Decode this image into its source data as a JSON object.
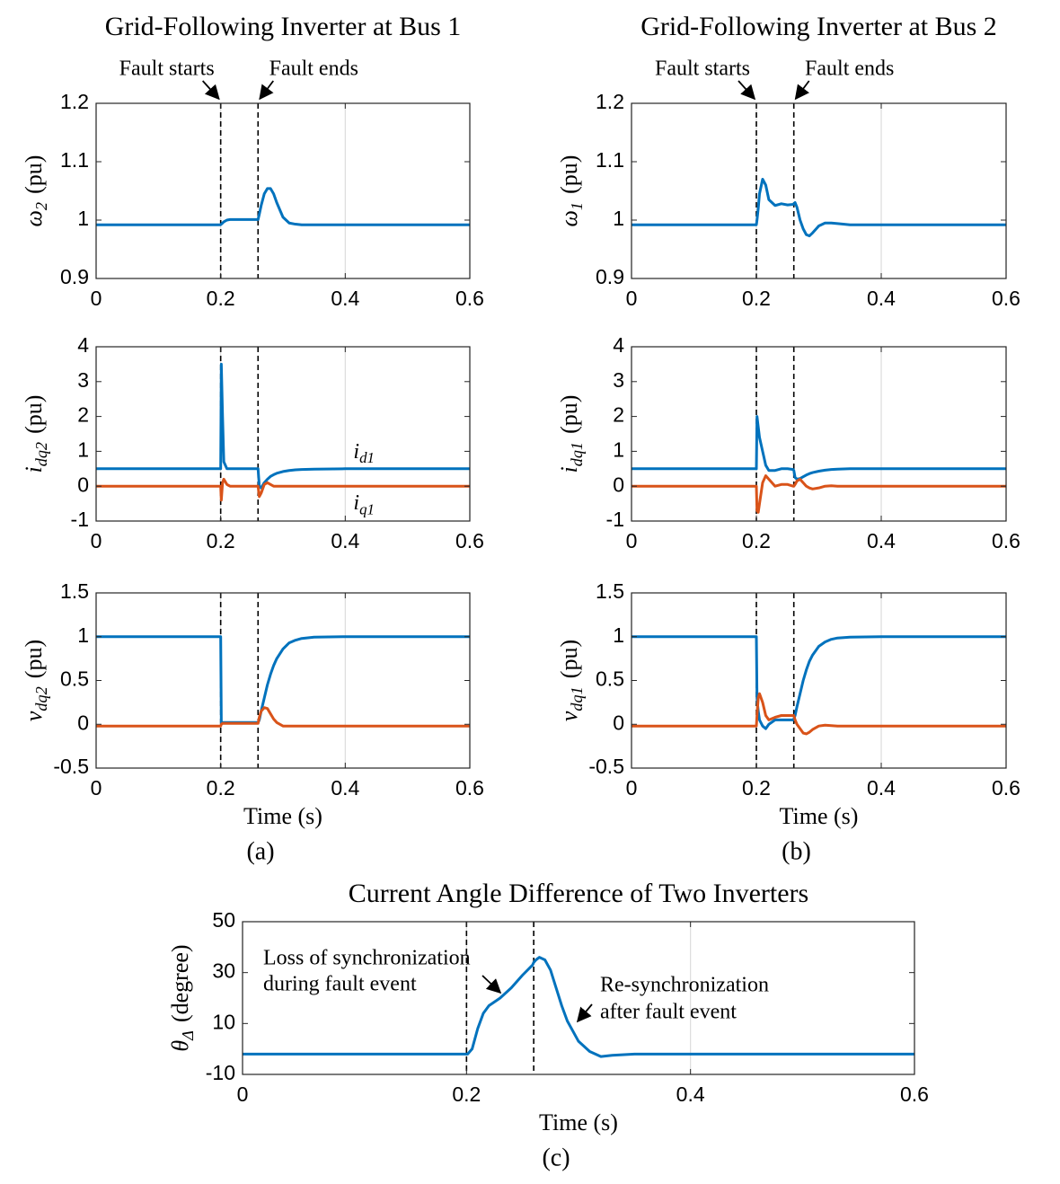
{
  "chart_data": [
    {
      "type": "line",
      "title": "Grid-Following Inverter at Bus 1",
      "annotations": [
        "Fault starts",
        "Fault ends"
      ],
      "ylabel": {
        "symbol": "ω",
        "subscript": "2",
        "unit": "(pu)"
      },
      "x": [
        0,
        0.1,
        0.199,
        0.2,
        0.201,
        0.203,
        0.205,
        0.21,
        0.215,
        0.22,
        0.23,
        0.24,
        0.25,
        0.259,
        0.26,
        0.262,
        0.265,
        0.27,
        0.275,
        0.28,
        0.285,
        0.29,
        0.3,
        0.31,
        0.32,
        0.33,
        0.35,
        0.4,
        0.5,
        0.6
      ],
      "series": [
        {
          "color": "#0072BD",
          "values": [
            0.992,
            0.992,
            0.992,
            0.992,
            0.993,
            0.995,
            0.997,
            1.0,
            1.001,
            1.001,
            1.001,
            1.001,
            1.001,
            1.001,
            1.001,
            1.01,
            1.025,
            1.045,
            1.054,
            1.054,
            1.045,
            1.03,
            1.005,
            0.995,
            0.993,
            0.992,
            0.992,
            0.992,
            0.992,
            0.992
          ]
        }
      ],
      "vlines": [
        0.2,
        0.26
      ],
      "xlim": [
        0,
        0.6
      ],
      "xticks": [
        0,
        0.2,
        0.4,
        0.6
      ],
      "ylim": [
        0.9,
        1.2
      ],
      "yticks": [
        0.9,
        1,
        1.1,
        1.2
      ],
      "grid": "x"
    },
    {
      "type": "line",
      "ylabel": {
        "symbol": "i",
        "subscript": "dq2",
        "unit": "(pu)"
      },
      "x": [
        0,
        0.1,
        0.199,
        0.2,
        0.201,
        0.203,
        0.205,
        0.21,
        0.215,
        0.22,
        0.23,
        0.24,
        0.25,
        0.259,
        0.26,
        0.262,
        0.265,
        0.27,
        0.275,
        0.28,
        0.285,
        0.29,
        0.3,
        0.31,
        0.32,
        0.33,
        0.35,
        0.4,
        0.5,
        0.6
      ],
      "series": [
        {
          "label": {
            "symbol": "i",
            "subscript": "d1"
          },
          "color": "#0072BD",
          "values": [
            0.5,
            0.5,
            0.5,
            0.5,
            3.5,
            2.0,
            0.7,
            0.5,
            0.5,
            0.5,
            0.5,
            0.5,
            0.5,
            0.5,
            0.5,
            0.0,
            -0.05,
            0.1,
            0.2,
            0.28,
            0.33,
            0.37,
            0.42,
            0.45,
            0.47,
            0.48,
            0.49,
            0.5,
            0.5,
            0.5
          ]
        },
        {
          "label": {
            "symbol": "i",
            "subscript": "q1"
          },
          "color": "#D95319",
          "values": [
            0,
            0,
            0,
            0,
            -0.4,
            0.1,
            0.2,
            0.05,
            0,
            0,
            0,
            0,
            0,
            0,
            0,
            -0.3,
            -0.2,
            0.05,
            0.1,
            0.05,
            0,
            0,
            0,
            0,
            0,
            0,
            0,
            0,
            0,
            0
          ]
        }
      ],
      "vlines": [
        0.2,
        0.26
      ],
      "xlim": [
        0,
        0.6
      ],
      "xticks": [
        0,
        0.2,
        0.4,
        0.6
      ],
      "ylim": [
        -1,
        4
      ],
      "yticks": [
        -1,
        0,
        1,
        2,
        3,
        4
      ],
      "grid": "x"
    },
    {
      "type": "line",
      "ylabel": {
        "symbol": "v",
        "subscript": "dq2",
        "unit": "(pu)"
      },
      "xlabel": "Time (s)",
      "caption": "(a)",
      "x": [
        0,
        0.1,
        0.199,
        0.2,
        0.201,
        0.203,
        0.205,
        0.21,
        0.215,
        0.22,
        0.23,
        0.24,
        0.25,
        0.259,
        0.26,
        0.262,
        0.265,
        0.27,
        0.275,
        0.28,
        0.285,
        0.29,
        0.3,
        0.31,
        0.32,
        0.33,
        0.35,
        0.4,
        0.5,
        0.6
      ],
      "series": [
        {
          "color": "#0072BD",
          "values": [
            1,
            1,
            1,
            1,
            0.02,
            0.02,
            0.02,
            0.02,
            0.02,
            0.02,
            0.02,
            0.02,
            0.02,
            0.02,
            0.02,
            0.05,
            0.15,
            0.3,
            0.45,
            0.57,
            0.67,
            0.75,
            0.86,
            0.93,
            0.96,
            0.98,
            0.995,
            1,
            1,
            1
          ]
        },
        {
          "color": "#D95319",
          "values": [
            -0.02,
            -0.02,
            -0.02,
            -0.02,
            0,
            0.01,
            0.01,
            0.01,
            0.01,
            0.01,
            0.01,
            0.01,
            0.01,
            0.01,
            0.01,
            0.08,
            0.15,
            0.19,
            0.18,
            0.12,
            0.06,
            0.02,
            -0.02,
            -0.02,
            -0.02,
            -0.02,
            -0.02,
            -0.02,
            -0.02,
            -0.02
          ]
        }
      ],
      "vlines": [
        0.2,
        0.26
      ],
      "xlim": [
        0,
        0.6
      ],
      "xticks": [
        0,
        0.2,
        0.4,
        0.6
      ],
      "ylim": [
        -0.5,
        1.5
      ],
      "yticks": [
        -0.5,
        0,
        0.5,
        1,
        1.5
      ],
      "grid": "x"
    },
    {
      "type": "line",
      "title": "Grid-Following Inverter at Bus 2",
      "annotations": [
        "Fault starts",
        "Fault ends"
      ],
      "ylabel": {
        "symbol": "ω",
        "subscript": "1",
        "unit": "(pu)"
      },
      "x": [
        0,
        0.1,
        0.199,
        0.2,
        0.201,
        0.203,
        0.205,
        0.21,
        0.215,
        0.22,
        0.23,
        0.24,
        0.25,
        0.259,
        0.26,
        0.262,
        0.265,
        0.27,
        0.275,
        0.28,
        0.285,
        0.29,
        0.3,
        0.31,
        0.32,
        0.33,
        0.35,
        0.4,
        0.5,
        0.6
      ],
      "series": [
        {
          "color": "#0072BD",
          "values": [
            0.992,
            0.992,
            0.992,
            0.992,
            1.0,
            1.02,
            1.045,
            1.07,
            1.06,
            1.035,
            1.025,
            1.028,
            1.026,
            1.027,
            1.028,
            1.03,
            1.022,
            1.0,
            0.985,
            0.975,
            0.973,
            0.978,
            0.99,
            0.995,
            0.995,
            0.994,
            0.992,
            0.992,
            0.992,
            0.992
          ]
        }
      ],
      "vlines": [
        0.2,
        0.26
      ],
      "xlim": [
        0,
        0.6
      ],
      "xticks": [
        0,
        0.2,
        0.4,
        0.6
      ],
      "ylim": [
        0.9,
        1.2
      ],
      "yticks": [
        0.9,
        1,
        1.1,
        1.2
      ],
      "grid": "x"
    },
    {
      "type": "line",
      "ylabel": {
        "symbol": "i",
        "subscript": "dq1",
        "unit": "(pu)"
      },
      "x": [
        0,
        0.1,
        0.199,
        0.2,
        0.201,
        0.203,
        0.205,
        0.21,
        0.215,
        0.22,
        0.23,
        0.24,
        0.25,
        0.259,
        0.26,
        0.262,
        0.265,
        0.27,
        0.275,
        0.28,
        0.285,
        0.29,
        0.3,
        0.31,
        0.32,
        0.33,
        0.35,
        0.4,
        0.5,
        0.6
      ],
      "series": [
        {
          "color": "#0072BD",
          "values": [
            0.5,
            0.5,
            0.5,
            0.5,
            2.0,
            1.7,
            1.4,
            1.0,
            0.6,
            0.45,
            0.45,
            0.5,
            0.5,
            0.48,
            0.45,
            0.25,
            0.2,
            0.22,
            0.27,
            0.32,
            0.36,
            0.39,
            0.43,
            0.46,
            0.48,
            0.49,
            0.5,
            0.5,
            0.5,
            0.5
          ]
        },
        {
          "color": "#D95319",
          "values": [
            0,
            0,
            0,
            0,
            -0.7,
            -0.75,
            -0.5,
            0.1,
            0.3,
            0.2,
            0,
            0.05,
            0.05,
            0,
            0,
            0.05,
            0.15,
            0.2,
            0.1,
            0,
            -0.05,
            -0.08,
            -0.05,
            0,
            0.01,
            0,
            0,
            0,
            0,
            0
          ]
        }
      ],
      "vlines": [
        0.2,
        0.26
      ],
      "xlim": [
        0,
        0.6
      ],
      "xticks": [
        0,
        0.2,
        0.4,
        0.6
      ],
      "ylim": [
        -1,
        4
      ],
      "yticks": [
        -1,
        0,
        1,
        2,
        3,
        4
      ],
      "grid": "x"
    },
    {
      "type": "line",
      "ylabel": {
        "symbol": "v",
        "subscript": "dq1",
        "unit": "(pu)"
      },
      "xlabel": "Time (s)",
      "caption": "(b)",
      "x": [
        0,
        0.1,
        0.199,
        0.2,
        0.201,
        0.203,
        0.205,
        0.21,
        0.215,
        0.22,
        0.23,
        0.24,
        0.25,
        0.259,
        0.26,
        0.262,
        0.265,
        0.27,
        0.275,
        0.28,
        0.285,
        0.29,
        0.3,
        0.31,
        0.32,
        0.33,
        0.35,
        0.4,
        0.5,
        0.6
      ],
      "series": [
        {
          "color": "#0072BD",
          "values": [
            1,
            1,
            1,
            1,
            0.3,
            0.15,
            0.05,
            -0.02,
            -0.05,
            0,
            0.05,
            0.05,
            0.05,
            0.05,
            0.06,
            0.1,
            0.2,
            0.35,
            0.5,
            0.62,
            0.72,
            0.79,
            0.89,
            0.94,
            0.97,
            0.985,
            0.995,
            1,
            1,
            1
          ]
        },
        {
          "color": "#D95319",
          "values": [
            -0.02,
            -0.02,
            -0.02,
            -0.02,
            0.1,
            0.3,
            0.35,
            0.25,
            0.1,
            0.05,
            0.08,
            0.1,
            0.1,
            0.1,
            0.1,
            0.05,
            0,
            -0.05,
            -0.1,
            -0.11,
            -0.09,
            -0.06,
            -0.02,
            -0.01,
            -0.015,
            -0.02,
            -0.02,
            -0.02,
            -0.02,
            -0.02
          ]
        }
      ],
      "vlines": [
        0.2,
        0.26
      ],
      "xlim": [
        0,
        0.6
      ],
      "xticks": [
        0,
        0.2,
        0.4,
        0.6
      ],
      "ylim": [
        -0.5,
        1.5
      ],
      "yticks": [
        -0.5,
        0,
        0.5,
        1,
        1.5
      ],
      "grid": "x"
    },
    {
      "type": "line",
      "title": "Current Angle Difference of Two Inverters",
      "xlabel": "Time (s)",
      "caption": "(c)",
      "annotations": [
        [
          "Loss of synchronization",
          "during fault event"
        ],
        [
          "Re-synchronization",
          "after fault event"
        ]
      ],
      "ylabel": {
        "symbol": "θ",
        "subscript": "Δ",
        "unit": "(degree)"
      },
      "x": [
        0,
        0.1,
        0.199,
        0.2,
        0.201,
        0.203,
        0.205,
        0.21,
        0.215,
        0.22,
        0.23,
        0.24,
        0.25,
        0.259,
        0.26,
        0.262,
        0.265,
        0.27,
        0.275,
        0.28,
        0.285,
        0.29,
        0.3,
        0.31,
        0.32,
        0.33,
        0.35,
        0.4,
        0.5,
        0.6
      ],
      "series": [
        {
          "color": "#0072BD",
          "values": [
            -2,
            -2,
            -2,
            -2,
            -2,
            -1,
            0,
            8,
            14,
            17,
            20,
            24,
            29,
            33,
            34,
            35,
            36,
            35,
            31,
            24,
            17,
            11,
            3,
            -1,
            -3,
            -2.5,
            -2,
            -2,
            -2,
            -2
          ]
        }
      ],
      "vlines": [
        0.2,
        0.26
      ],
      "xlim": [
        0,
        0.6
      ],
      "xticks": [
        0,
        0.2,
        0.4,
        0.6
      ],
      "ylim": [
        -10,
        50
      ],
      "yticks": [
        -10,
        10,
        30,
        50
      ],
      "grid": "x"
    }
  ]
}
